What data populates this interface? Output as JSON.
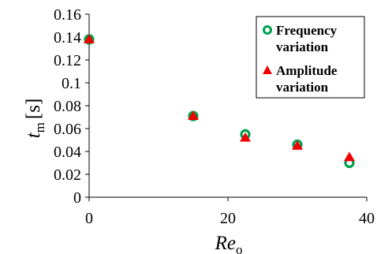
{
  "chart_data": {
    "type": "scatter",
    "title": "",
    "xlabel": {
      "main": "Re",
      "sub": "o"
    },
    "ylabel": {
      "main": "t",
      "sub": "m",
      "unit": "[s]"
    },
    "xlim": [
      0,
      40
    ],
    "ylim": [
      0,
      0.16
    ],
    "xticks": [
      "0",
      "20",
      "40"
    ],
    "yticks": [
      "0",
      "0.02",
      "0.04",
      "0.06",
      "0.08",
      "0.1",
      "0.12",
      "0.14",
      "0.16"
    ],
    "grid": false,
    "legend_position": "top-right",
    "series": [
      {
        "name": [
          "Frequency",
          "variation"
        ],
        "marker": "open-circle",
        "color": "#00a050",
        "x": [
          0,
          15,
          22.5,
          30,
          37.5
        ],
        "y": [
          0.138,
          0.071,
          0.055,
          0.046,
          0.03
        ]
      },
      {
        "name": [
          "Amplitude",
          "variation"
        ],
        "marker": "triangle",
        "color": "#ee0000",
        "x": [
          0,
          15,
          22.5,
          30,
          37.5
        ],
        "y": [
          0.138,
          0.071,
          0.052,
          0.045,
          0.035
        ]
      }
    ]
  }
}
